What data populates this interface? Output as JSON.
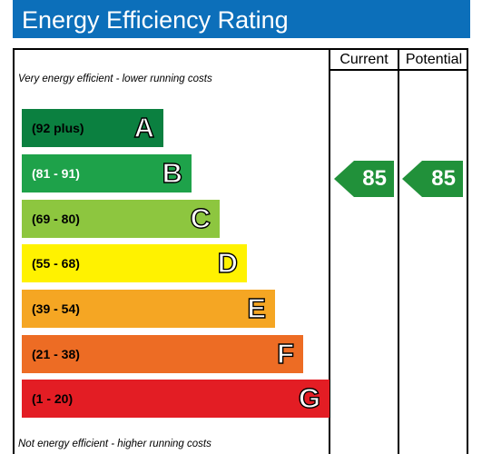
{
  "title": "Energy Efficiency Rating",
  "columns": {
    "current": "Current",
    "potential": "Potential"
  },
  "notes": {
    "top": "Very energy efficient - lower running costs",
    "bottom": "Not energy efficient - higher running costs"
  },
  "bands": [
    {
      "range": "(92 plus)",
      "letter": "A",
      "color": "#0b8040"
    },
    {
      "range": "(81 - 91)",
      "letter": "B",
      "color": "#1ea24a"
    },
    {
      "range": "(69 - 80)",
      "letter": "C",
      "color": "#8dc63f"
    },
    {
      "range": "(55 - 68)",
      "letter": "D",
      "color": "#fff200"
    },
    {
      "range": "(39 - 54)",
      "letter": "E",
      "color": "#f5a623"
    },
    {
      "range": "(21 - 38)",
      "letter": "F",
      "color": "#ed6c24"
    },
    {
      "range": "(1 - 20)",
      "letter": "G",
      "color": "#e31d24"
    }
  ],
  "ratings": {
    "current": {
      "value": "85",
      "color": "#21913a"
    },
    "potential": {
      "value": "85",
      "color": "#21913a"
    }
  }
}
